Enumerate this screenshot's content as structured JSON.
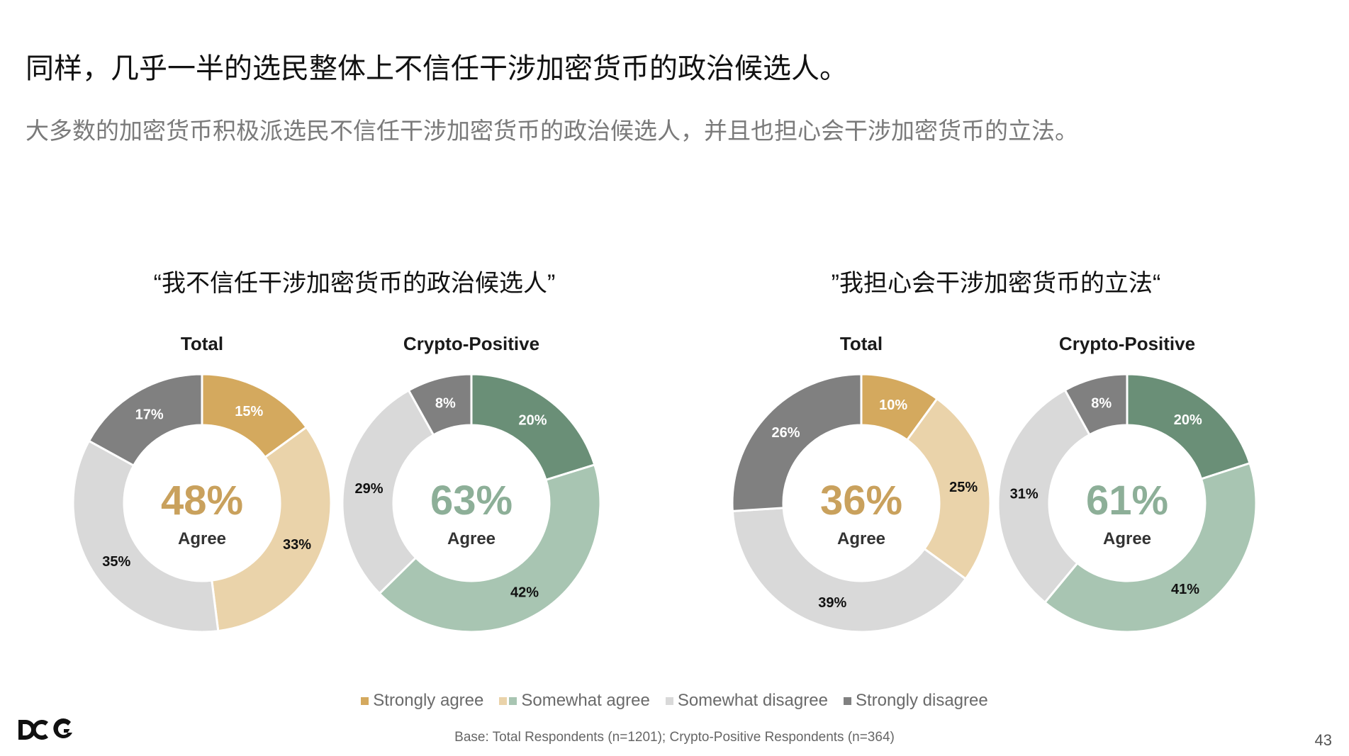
{
  "title": "同样，几乎一半的选民整体上不信任干涉加密货币的政治候选人。",
  "subtitle": "大多数的加密货币积极派选民不信任干涉加密货币的政治候选人，并且也担心会干涉加密货币的立法。",
  "groups": [
    {
      "title": "“我不信任干涉加密货币的政治候选人”"
    },
    {
      "title": "”我担心会干涉加密货币的立法“"
    }
  ],
  "colors": {
    "strongly_agree_total": "#D4A95E",
    "somewhat_agree_total": "#EAD3AA",
    "strongly_agree_crypto": "#6A8F77",
    "somewhat_agree_crypto": "#A8C5B2",
    "somewhat_disagree": "#D9D9D9",
    "strongly_disagree": "#808080",
    "center_total": "#C9A15D",
    "center_crypto": "#8DAF98"
  },
  "chart_data": [
    {
      "type": "pie",
      "title": "Total",
      "center_value": "48%",
      "center_label": "Agree",
      "categories": [
        "Strongly agree",
        "Somewhat agree",
        "Somewhat disagree",
        "Strongly disagree"
      ],
      "values": [
        15,
        33,
        35,
        17
      ],
      "labels": [
        "15%",
        "33%",
        "35%",
        "17%"
      ],
      "palette": "total"
    },
    {
      "type": "pie",
      "title": "Crypto-Positive",
      "center_value": "63%",
      "center_label": "Agree",
      "categories": [
        "Strongly agree",
        "Somewhat agree",
        "Somewhat disagree",
        "Strongly disagree"
      ],
      "values": [
        20,
        42,
        29,
        8
      ],
      "labels": [
        "20%",
        "42%",
        "29%",
        "8%"
      ],
      "palette": "crypto"
    },
    {
      "type": "pie",
      "title": "Total",
      "center_value": "36%",
      "center_label": "Agree",
      "categories": [
        "Strongly agree",
        "Somewhat agree",
        "Somewhat disagree",
        "Strongly disagree"
      ],
      "values": [
        10,
        25,
        39,
        26
      ],
      "labels": [
        "10%",
        "25%",
        "39%",
        "26%"
      ],
      "palette": "total"
    },
    {
      "type": "pie",
      "title": "Crypto-Positive",
      "center_value": "61%",
      "center_label": "Agree",
      "categories": [
        "Strongly agree",
        "Somewhat agree",
        "Somewhat disagree",
        "Strongly disagree"
      ],
      "values": [
        20,
        41,
        31,
        8
      ],
      "labels": [
        "20%",
        "41%",
        "31%",
        "8%"
      ],
      "palette": "crypto"
    }
  ],
  "legend": {
    "items": [
      {
        "label": "Strongly agree",
        "colors": [
          "#D4A95E"
        ]
      },
      {
        "label": "Somewhat agree",
        "colors": [
          "#EAD3AA",
          "#A8C5B2"
        ]
      },
      {
        "label": "Somewhat disagree",
        "colors": [
          "#D9D9D9"
        ]
      },
      {
        "label": "Strongly disagree",
        "colors": [
          "#808080"
        ]
      }
    ]
  },
  "base_note": "Base: Total Respondents (n=1201); Crypto-Positive Respondents (n=364)",
  "logo_text": "DCG",
  "page_number": "43"
}
